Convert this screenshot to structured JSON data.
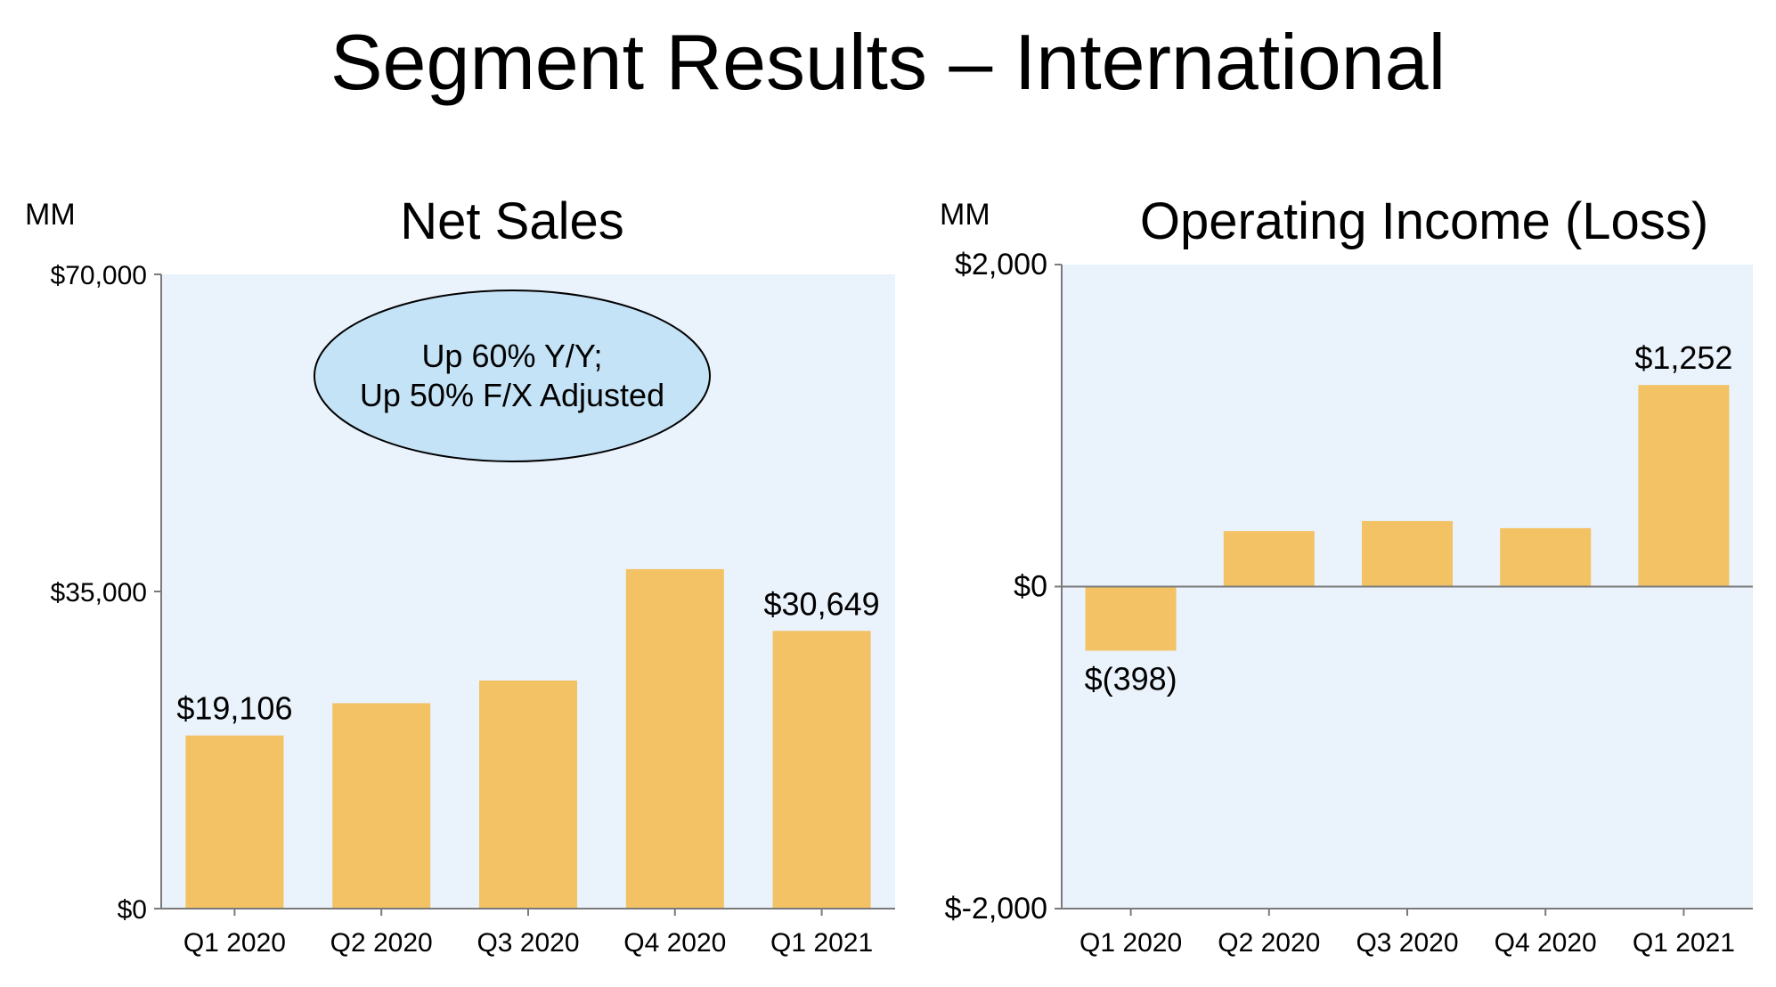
{
  "page": {
    "title": "Segment Results – International"
  },
  "chart_data": [
    {
      "type": "bar",
      "title": "Net Sales",
      "unit_label": "MM",
      "categories": [
        "Q1 2020",
        "Q2 2020",
        "Q3 2020",
        "Q4 2020",
        "Q1 2021"
      ],
      "values": [
        19106,
        22668,
        25171,
        37467,
        30649
      ],
      "ylim": [
        0,
        70000
      ],
      "yticks": [
        {
          "value": 0,
          "label": "$0"
        },
        {
          "value": 35000,
          "label": "$35,000"
        },
        {
          "value": 70000,
          "label": "$70,000"
        }
      ],
      "data_labels": [
        {
          "index": 0,
          "text": "$19,106"
        },
        {
          "index": 4,
          "text": "$30,649"
        }
      ],
      "annotation": [
        "Up 60% Y/Y;",
        "Up 50% F/X Adjusted"
      ],
      "colors": {
        "bar": "#F2C264",
        "plot_bg": "#EAF2FB",
        "annotation_fill": "#C5E3F6"
      }
    },
    {
      "type": "bar",
      "title": "Operating Income (Loss)",
      "unit_label": "MM",
      "categories": [
        "Q1 2020",
        "Q2 2020",
        "Q3 2020",
        "Q4 2020",
        "Q1 2021"
      ],
      "values": [
        -398,
        345,
        407,
        363,
        1252
      ],
      "ylim": [
        -2000,
        2000
      ],
      "yticks": [
        {
          "value": -2000,
          "label": "$-2,000"
        },
        {
          "value": 0,
          "label": "$0"
        },
        {
          "value": 2000,
          "label": "$2,000"
        }
      ],
      "data_labels": [
        {
          "index": 0,
          "text": "$(398)"
        },
        {
          "index": 4,
          "text": "$1,252"
        }
      ],
      "colors": {
        "bar": "#F2C264",
        "plot_bg": "#EAF2FB"
      }
    }
  ]
}
